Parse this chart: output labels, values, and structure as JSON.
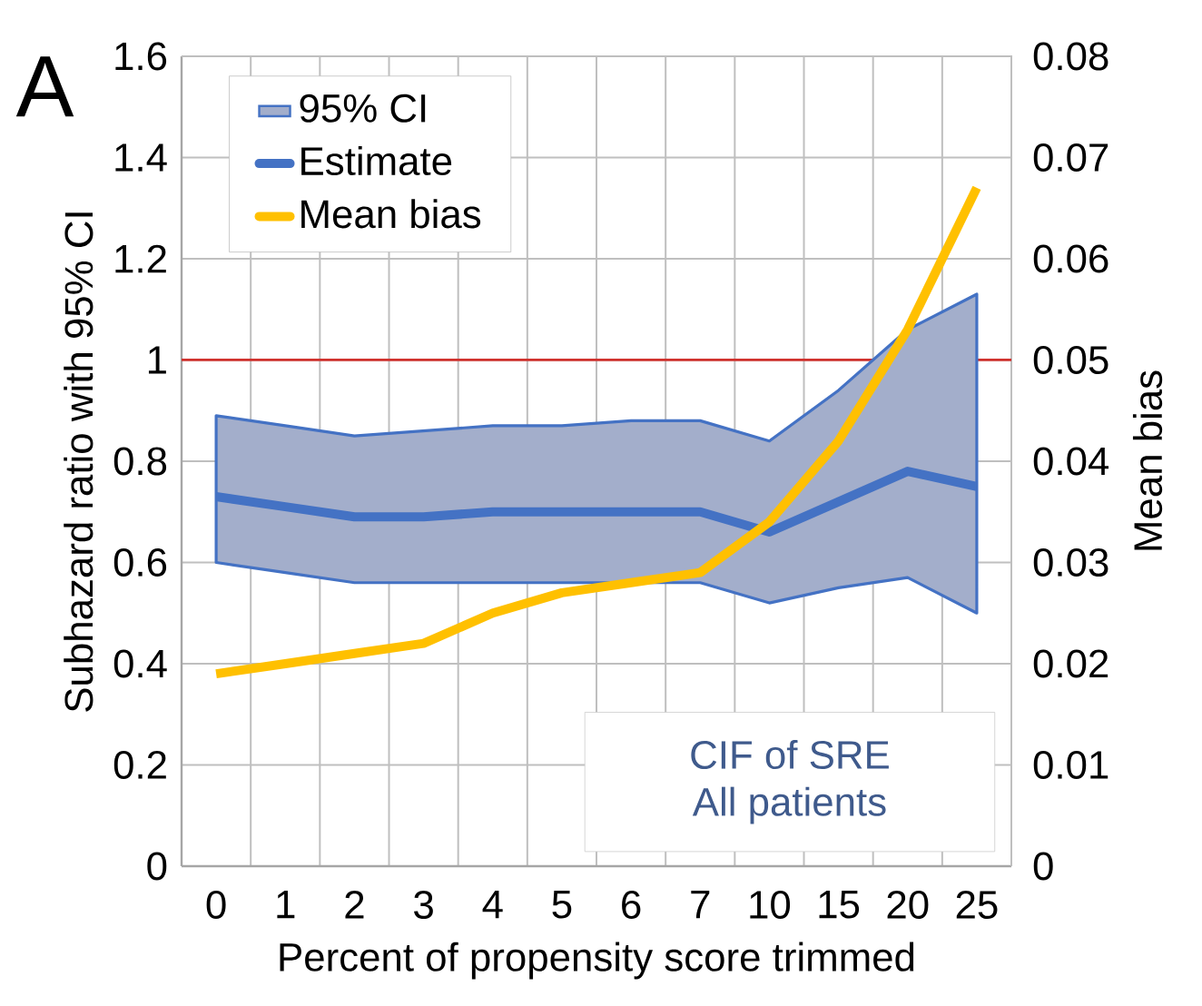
{
  "chart_data": {
    "type": "line",
    "categories": [
      "0",
      "1",
      "2",
      "3",
      "4",
      "5",
      "6",
      "7",
      "10",
      "15",
      "20",
      "25"
    ],
    "xlabel": "Percent of propensity score trimmed",
    "ylabel": "Subhazard ratio with 95% CI",
    "y2label": "Mean bias",
    "ylim": [
      0,
      1.6
    ],
    "yticks": [
      0,
      0.2,
      0.4,
      0.6,
      0.8,
      1,
      1.2,
      1.4,
      1.6
    ],
    "y2lim": [
      0,
      0.08
    ],
    "y2ticks": [
      0,
      0.01,
      0.02,
      0.03,
      0.04,
      0.05,
      0.06,
      0.07,
      0.08
    ],
    "series": [
      {
        "name": "Estimate",
        "color": "#4472c4",
        "values": [
          0.73,
          0.71,
          0.69,
          0.69,
          0.7,
          0.7,
          0.7,
          0.7,
          0.66,
          0.72,
          0.78,
          0.75
        ],
        "upper": [
          0.89,
          0.87,
          0.85,
          0.86,
          0.87,
          0.87,
          0.88,
          0.88,
          0.84,
          0.94,
          1.06,
          1.13
        ],
        "lower": [
          0.6,
          0.58,
          0.56,
          0.56,
          0.56,
          0.56,
          0.56,
          0.56,
          0.52,
          0.55,
          0.57,
          0.5
        ]
      },
      {
        "name": "Mean bias",
        "axis": "y2",
        "color": "#ffc000",
        "values": [
          0.019,
          0.02,
          0.021,
          0.022,
          0.025,
          0.027,
          0.028,
          0.029,
          0.034,
          0.042,
          0.053,
          0.067
        ]
      }
    ],
    "ref_lines": [
      {
        "axis": "y",
        "value": 1,
        "color": "#d0312d"
      }
    ],
    "annotations": [
      "A",
      "95% CI",
      "CIF of SRE",
      "All patients"
    ],
    "grid": true,
    "legend": "top left",
    "marker": "none",
    "line_style": "solid"
  }
}
